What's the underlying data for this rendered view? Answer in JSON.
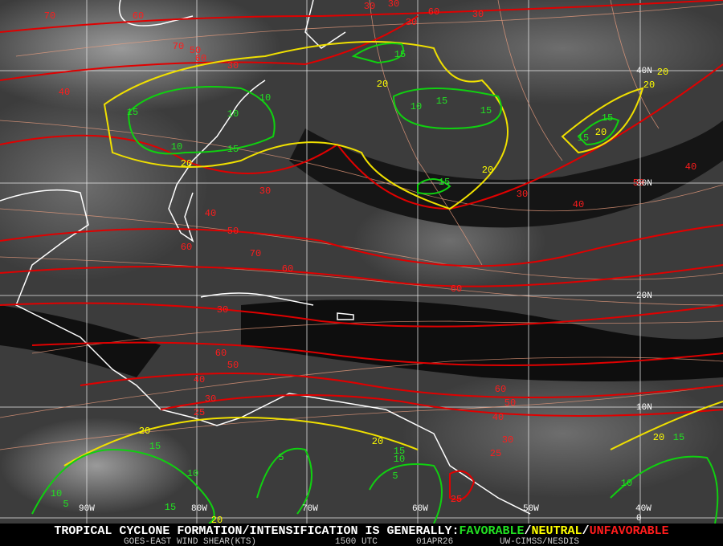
{
  "map": {
    "contour_labels": [
      70,
      60,
      70,
      50,
      60,
      30,
      40,
      30,
      30,
      30,
      60,
      30,
      30,
      40,
      50,
      60,
      70,
      60,
      60,
      30,
      60,
      50,
      40,
      30,
      25,
      30,
      40,
      50,
      40,
      60,
      50,
      40,
      30,
      25,
      25,
      20,
      20,
      20,
      20,
      20,
      20,
      20,
      20,
      20,
      20,
      15,
      10,
      15,
      10,
      10,
      15,
      10,
      15,
      15,
      15,
      15,
      15,
      15,
      10,
      5,
      15,
      10,
      5,
      10,
      5,
      15,
      10,
      15
    ],
    "latitude_labels": [
      "40N",
      "30N",
      "20N",
      "10N",
      "0"
    ],
    "longitude_labels": [
      "90W",
      "80W",
      "70W",
      "60W",
      "50W",
      "40W"
    ],
    "footer": {
      "statement": "TROPICAL CYCLONE FORMATION/INTENSIFICATION IS GENERALLY:",
      "separator": "/",
      "categories": [
        {
          "text": "FAVORABLE",
          "color": "#22e022"
        },
        {
          "text": "NEUTRAL",
          "color": "#ffff00"
        },
        {
          "text": "UNFAVORABLE",
          "color": "#ff1c1c"
        }
      ],
      "product": "GOES-EAST WIND SHEAR(KTS)",
      "time": "1500 UTC",
      "date": "01APR26",
      "source": "UW-CIMSS/NESDIS"
    }
  }
}
